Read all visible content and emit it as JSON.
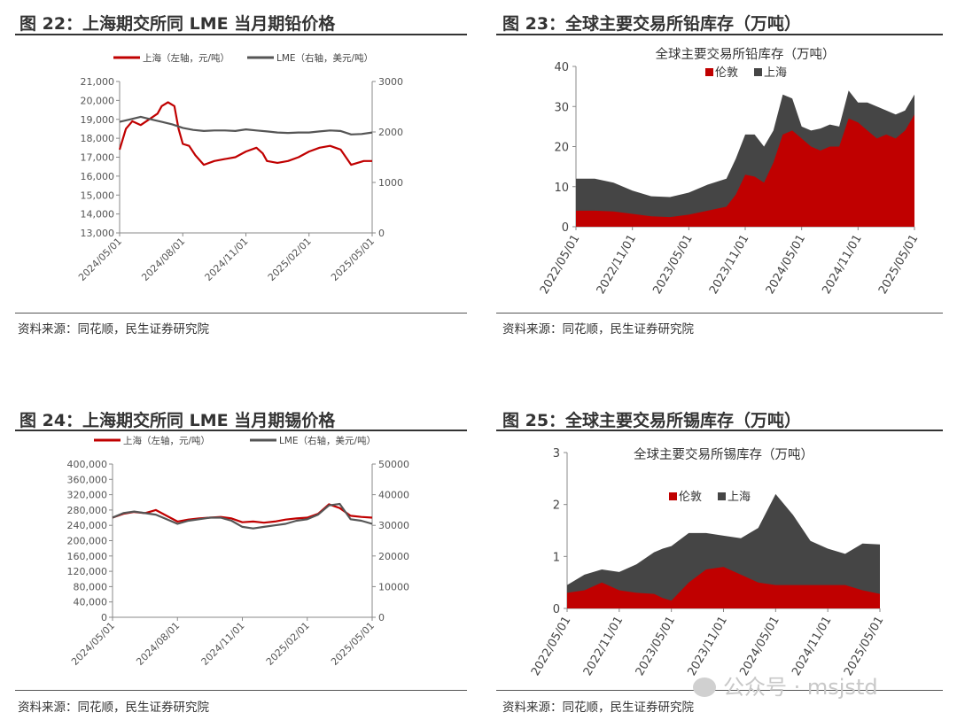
{
  "panels": [
    {
      "title": "图 22：上海期交所同 LME 当月期铅价格",
      "source": "资料来源：同花顺，民生证券研究院"
    },
    {
      "title": "图 23：全球主要交易所铅库存（万吨）",
      "source": "资料来源：同花顺，民生证券研究院"
    },
    {
      "title": "图 24：上海期交所同 LME 当月期锡价格",
      "source": "资料来源：同花顺，民生证券研究院"
    },
    {
      "title": "图 25：全球主要交易所锡库存（万吨）",
      "source": "资料来源：同花顺，民生证券研究院"
    }
  ],
  "watermark": "公众号 · msjstd",
  "chart_data": [
    {
      "type": "line",
      "x_ticks": [
        "2024/05/01",
        "2024/08/01",
        "2024/11/01",
        "2025/02/01",
        "2025/05/01"
      ],
      "x_range": [
        0,
        12
      ],
      "left_axis": {
        "ylim": [
          13000,
          21000
        ],
        "ticks": [
          "13,000",
          "14,000",
          "15,000",
          "16,000",
          "17,000",
          "18,000",
          "19,000",
          "20,000",
          "21,000"
        ]
      },
      "right_axis": {
        "ylim": [
          0,
          3000
        ],
        "ticks": [
          "0",
          "1000",
          "2000",
          "3000"
        ]
      },
      "legend_position": "top",
      "series": [
        {
          "name": "上海（左轴，元/吨）",
          "color": "#c00000",
          "axis": "left",
          "x": [
            0,
            0.3,
            0.6,
            1,
            1.4,
            1.8,
            2,
            2.3,
            2.6,
            2.8,
            3,
            3.3,
            3.6,
            4,
            4.5,
            5,
            5.5,
            6,
            6.5,
            6.8,
            7,
            7.5,
            8,
            8.5,
            9,
            9.5,
            10,
            10.5,
            11,
            11.3,
            11.6,
            12
          ],
          "y": [
            17400,
            18500,
            18900,
            18700,
            19000,
            19300,
            19700,
            19900,
            19700,
            18500,
            17700,
            17600,
            17100,
            16600,
            16800,
            16900,
            17000,
            17300,
            17500,
            17200,
            16800,
            16700,
            16800,
            17000,
            17300,
            17500,
            17600,
            17400,
            16600,
            16700,
            16800,
            16800
          ]
        },
        {
          "name": "LME（右轴，美元/吨）",
          "color": "#555555",
          "axis": "right",
          "x": [
            0,
            0.5,
            1,
            1.5,
            2,
            2.5,
            3,
            3.5,
            4,
            4.5,
            5,
            5.5,
            6,
            6.5,
            7,
            7.5,
            8,
            8.5,
            9,
            9.5,
            10,
            10.5,
            11,
            11.5,
            12
          ],
          "y": [
            2200,
            2250,
            2300,
            2250,
            2200,
            2150,
            2080,
            2040,
            2020,
            2030,
            2030,
            2020,
            2050,
            2030,
            2010,
            1990,
            1980,
            1990,
            1990,
            2010,
            2030,
            2020,
            1950,
            1960,
            1990
          ]
        }
      ]
    },
    {
      "type": "area",
      "title": "全球主要交易所铅库存（万吨）",
      "x_ticks": [
        "2022/05/01",
        "2022/11/01",
        "2023/05/01",
        "2023/11/01",
        "2024/05/01",
        "2024/11/01",
        "2025/05/01"
      ],
      "x_range": [
        0,
        36
      ],
      "ylim": [
        0,
        40
      ],
      "y_ticks": [
        "0",
        "10",
        "20",
        "30",
        "40"
      ],
      "legend_position": "top",
      "stacked": true,
      "series": [
        {
          "name": "伦敦",
          "color": "#c00000",
          "x": [
            0,
            2,
            4,
            6,
            8,
            10,
            12,
            14,
            16,
            17,
            18,
            19,
            20,
            21,
            22,
            23,
            24,
            25,
            26,
            27,
            28,
            29,
            30,
            31,
            32,
            33,
            34,
            35,
            36
          ],
          "y": [
            4,
            4,
            3.8,
            3.2,
            2.6,
            2.4,
            3,
            4,
            5,
            8,
            13,
            12.5,
            11,
            16,
            23,
            24,
            22,
            20,
            19,
            20,
            20,
            27,
            26,
            24,
            22,
            23,
            22,
            24,
            28
          ]
        },
        {
          "name": "上海",
          "color": "#454545",
          "x": [
            0,
            2,
            4,
            6,
            8,
            10,
            12,
            14,
            16,
            17,
            18,
            19,
            20,
            21,
            22,
            23,
            24,
            25,
            26,
            27,
            28,
            29,
            30,
            31,
            32,
            33,
            34,
            35,
            36
          ],
          "y": [
            8,
            8,
            7.2,
            5.8,
            5,
            5,
            5.5,
            6.5,
            7,
            9,
            10,
            10.5,
            9,
            8,
            10,
            8,
            3,
            4,
            5.5,
            5.5,
            5,
            7,
            5,
            7,
            8,
            6,
            6,
            5,
            5
          ]
        }
      ]
    },
    {
      "type": "line",
      "x_ticks": [
        "2024/05/01",
        "2024/08/01",
        "2024/11/01",
        "2025/02/01",
        "2025/05/01"
      ],
      "x_range": [
        0,
        12
      ],
      "left_axis": {
        "ylim": [
          0,
          400000
        ],
        "ticks": [
          "0",
          "40,000",
          "80,000",
          "120,000",
          "160,000",
          "200,000",
          "240,000",
          "280,000",
          "320,000",
          "360,000",
          "400,000"
        ]
      },
      "right_axis": {
        "ylim": [
          0,
          50000
        ],
        "ticks": [
          "0",
          "10000",
          "20000",
          "30000",
          "40000",
          "50000"
        ]
      },
      "legend_position": "top",
      "series": [
        {
          "name": "上海（左轴，元/吨）",
          "color": "#c00000",
          "axis": "left",
          "x": [
            0,
            0.5,
            1,
            1.5,
            2,
            2.5,
            3,
            3.5,
            4,
            4.5,
            5,
            5.5,
            6,
            6.5,
            7,
            7.5,
            8,
            8.5,
            9,
            9.5,
            10,
            10.5,
            11,
            11.5,
            12
          ],
          "y": [
            260000,
            270000,
            275000,
            272000,
            280000,
            265000,
            250000,
            255000,
            258000,
            260000,
            262000,
            258000,
            248000,
            250000,
            247000,
            250000,
            255000,
            258000,
            260000,
            270000,
            295000,
            285000,
            265000,
            262000,
            260000
          ]
        },
        {
          "name": "LME（右轴，美元/吨）",
          "color": "#555555",
          "axis": "right",
          "x": [
            0,
            0.5,
            1,
            1.5,
            2,
            2.5,
            3,
            3.5,
            4,
            4.5,
            5,
            5.5,
            6,
            6.5,
            7,
            7.5,
            8,
            8.5,
            9,
            9.5,
            10,
            10.5,
            11,
            11.5,
            12
          ],
          "y": [
            32500,
            34000,
            34500,
            34000,
            33500,
            32000,
            30500,
            31500,
            32000,
            32500,
            32500,
            31500,
            29500,
            29000,
            29500,
            30000,
            30500,
            31500,
            32000,
            33500,
            36500,
            37000,
            32000,
            31500,
            30500
          ]
        }
      ]
    },
    {
      "type": "area",
      "title": "全球主要交易所锡库存（万吨）",
      "x_ticks": [
        "2022/05/01",
        "2022/11/01",
        "2023/05/01",
        "2023/11/01",
        "2024/05/01",
        "2024/11/01",
        "2025/05/01"
      ],
      "x_range": [
        0,
        36
      ],
      "ylim": [
        0,
        3
      ],
      "y_ticks": [
        "0",
        "1",
        "2",
        "3"
      ],
      "legend_position": "top",
      "stacked": true,
      "series": [
        {
          "name": "伦敦",
          "color": "#c00000",
          "x": [
            0,
            2,
            4,
            6,
            8,
            10,
            11,
            12,
            14,
            16,
            18,
            20,
            22,
            24,
            26,
            28,
            30,
            32,
            34,
            36
          ],
          "y": [
            0.3,
            0.35,
            0.5,
            0.35,
            0.3,
            0.28,
            0.2,
            0.15,
            0.5,
            0.75,
            0.8,
            0.65,
            0.5,
            0.45,
            0.45,
            0.45,
            0.45,
            0.45,
            0.35,
            0.28
          ]
        },
        {
          "name": "上海",
          "color": "#454545",
          "x": [
            0,
            2,
            4,
            6,
            8,
            10,
            11,
            12,
            14,
            16,
            18,
            20,
            22,
            24,
            26,
            28,
            30,
            32,
            34,
            36
          ],
          "y": [
            0.15,
            0.3,
            0.25,
            0.35,
            0.55,
            0.8,
            0.95,
            1.05,
            0.95,
            0.7,
            0.6,
            0.7,
            1.05,
            1.75,
            1.35,
            0.85,
            0.7,
            0.6,
            0.9,
            0.95
          ]
        }
      ]
    }
  ]
}
